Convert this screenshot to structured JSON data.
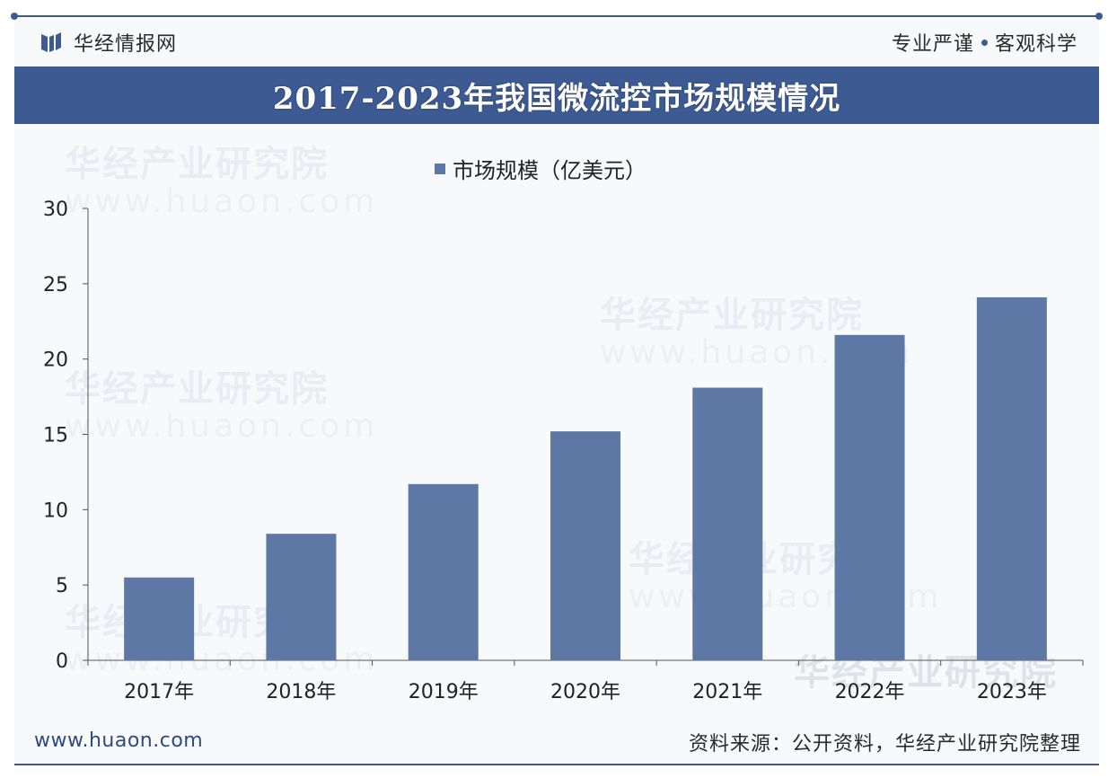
{
  "header": {
    "brand": "华经情报网",
    "slogan_left": "专业严谨",
    "slogan_right": "客观科学"
  },
  "watermark": {
    "name": "华经产业研究院",
    "site": "www.huaon.com"
  },
  "colors": {
    "accent": "#3d5a93",
    "bar": "#5e78a6"
  },
  "chart_data": {
    "type": "bar",
    "title": "2017-2023年我国微流控市场规模情况",
    "categories": [
      "2017年",
      "2018年",
      "2019年",
      "2020年",
      "2021年",
      "2022年",
      "2023年"
    ],
    "series": [
      {
        "name": "市场规模（亿美元）",
        "values": [
          5.5,
          8.4,
          11.7,
          15.2,
          18.1,
          21.6,
          24.1
        ]
      }
    ],
    "yticks": [
      "0",
      "5",
      "10",
      "15",
      "20",
      "25",
      "30"
    ],
    "ylim": [
      0,
      30
    ],
    "legend": "top-center",
    "grid": false
  },
  "footer": {
    "url": "www.huaon.com",
    "source": "资料来源：公开资料，华经产业研究院整理"
  }
}
